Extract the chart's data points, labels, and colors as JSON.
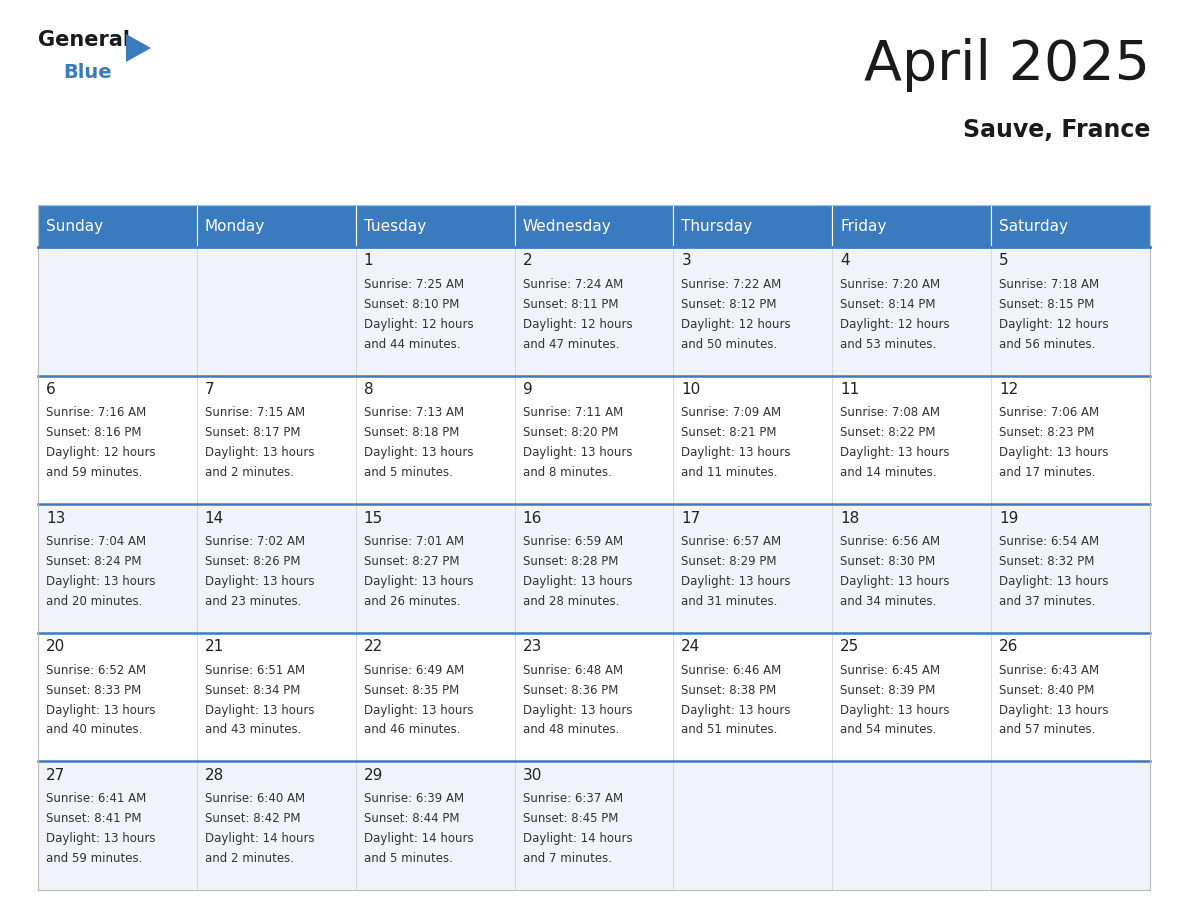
{
  "title": "April 2025",
  "subtitle": "Sauve, France",
  "header_color": "#3a7bbf",
  "header_text_color": "#ffffff",
  "cell_bg_colors": [
    "#f0f4f8",
    "#ffffff"
  ],
  "border_color": "#3a7bbf",
  "cell_border_color": "#cccccc",
  "outer_border_color": "#bbbbbb",
  "days_of_week": [
    "Sunday",
    "Monday",
    "Tuesday",
    "Wednesday",
    "Thursday",
    "Friday",
    "Saturday"
  ],
  "day_name_fontsize": 11,
  "cell_fontsize": 8.5,
  "day_num_fontsize": 11,
  "title_fontsize": 40,
  "subtitle_fontsize": 17,
  "logo_general_fontsize": 15,
  "logo_blue_fontsize": 14,
  "weeks": [
    [
      {
        "day": 0
      },
      {
        "day": 0
      },
      {
        "day": 1,
        "sunrise": "7:25 AM",
        "sunset": "8:10 PM",
        "daylight": "12 hours and 44 minutes."
      },
      {
        "day": 2,
        "sunrise": "7:24 AM",
        "sunset": "8:11 PM",
        "daylight": "12 hours and 47 minutes."
      },
      {
        "day": 3,
        "sunrise": "7:22 AM",
        "sunset": "8:12 PM",
        "daylight": "12 hours and 50 minutes."
      },
      {
        "day": 4,
        "sunrise": "7:20 AM",
        "sunset": "8:14 PM",
        "daylight": "12 hours and 53 minutes."
      },
      {
        "day": 5,
        "sunrise": "7:18 AM",
        "sunset": "8:15 PM",
        "daylight": "12 hours and 56 minutes."
      }
    ],
    [
      {
        "day": 6,
        "sunrise": "7:16 AM",
        "sunset": "8:16 PM",
        "daylight": "12 hours and 59 minutes."
      },
      {
        "day": 7,
        "sunrise": "7:15 AM",
        "sunset": "8:17 PM",
        "daylight": "13 hours and 2 minutes."
      },
      {
        "day": 8,
        "sunrise": "7:13 AM",
        "sunset": "8:18 PM",
        "daylight": "13 hours and 5 minutes."
      },
      {
        "day": 9,
        "sunrise": "7:11 AM",
        "sunset": "8:20 PM",
        "daylight": "13 hours and 8 minutes."
      },
      {
        "day": 10,
        "sunrise": "7:09 AM",
        "sunset": "8:21 PM",
        "daylight": "13 hours and 11 minutes."
      },
      {
        "day": 11,
        "sunrise": "7:08 AM",
        "sunset": "8:22 PM",
        "daylight": "13 hours and 14 minutes."
      },
      {
        "day": 12,
        "sunrise": "7:06 AM",
        "sunset": "8:23 PM",
        "daylight": "13 hours and 17 minutes."
      }
    ],
    [
      {
        "day": 13,
        "sunrise": "7:04 AM",
        "sunset": "8:24 PM",
        "daylight": "13 hours and 20 minutes."
      },
      {
        "day": 14,
        "sunrise": "7:02 AM",
        "sunset": "8:26 PM",
        "daylight": "13 hours and 23 minutes."
      },
      {
        "day": 15,
        "sunrise": "7:01 AM",
        "sunset": "8:27 PM",
        "daylight": "13 hours and 26 minutes."
      },
      {
        "day": 16,
        "sunrise": "6:59 AM",
        "sunset": "8:28 PM",
        "daylight": "13 hours and 28 minutes."
      },
      {
        "day": 17,
        "sunrise": "6:57 AM",
        "sunset": "8:29 PM",
        "daylight": "13 hours and 31 minutes."
      },
      {
        "day": 18,
        "sunrise": "6:56 AM",
        "sunset": "8:30 PM",
        "daylight": "13 hours and 34 minutes."
      },
      {
        "day": 19,
        "sunrise": "6:54 AM",
        "sunset": "8:32 PM",
        "daylight": "13 hours and 37 minutes."
      }
    ],
    [
      {
        "day": 20,
        "sunrise": "6:52 AM",
        "sunset": "8:33 PM",
        "daylight": "13 hours and 40 minutes."
      },
      {
        "day": 21,
        "sunrise": "6:51 AM",
        "sunset": "8:34 PM",
        "daylight": "13 hours and 43 minutes."
      },
      {
        "day": 22,
        "sunrise": "6:49 AM",
        "sunset": "8:35 PM",
        "daylight": "13 hours and 46 minutes."
      },
      {
        "day": 23,
        "sunrise": "6:48 AM",
        "sunset": "8:36 PM",
        "daylight": "13 hours and 48 minutes."
      },
      {
        "day": 24,
        "sunrise": "6:46 AM",
        "sunset": "8:38 PM",
        "daylight": "13 hours and 51 minutes."
      },
      {
        "day": 25,
        "sunrise": "6:45 AM",
        "sunset": "8:39 PM",
        "daylight": "13 hours and 54 minutes."
      },
      {
        "day": 26,
        "sunrise": "6:43 AM",
        "sunset": "8:40 PM",
        "daylight": "13 hours and 57 minutes."
      }
    ],
    [
      {
        "day": 27,
        "sunrise": "6:41 AM",
        "sunset": "8:41 PM",
        "daylight": "13 hours and 59 minutes."
      },
      {
        "day": 28,
        "sunrise": "6:40 AM",
        "sunset": "8:42 PM",
        "daylight": "14 hours and 2 minutes."
      },
      {
        "day": 29,
        "sunrise": "6:39 AM",
        "sunset": "8:44 PM",
        "daylight": "14 hours and 5 minutes."
      },
      {
        "day": 30,
        "sunrise": "6:37 AM",
        "sunset": "8:45 PM",
        "daylight": "14 hours and 7 minutes."
      },
      {
        "day": 0
      },
      {
        "day": 0
      },
      {
        "day": 0
      }
    ]
  ]
}
